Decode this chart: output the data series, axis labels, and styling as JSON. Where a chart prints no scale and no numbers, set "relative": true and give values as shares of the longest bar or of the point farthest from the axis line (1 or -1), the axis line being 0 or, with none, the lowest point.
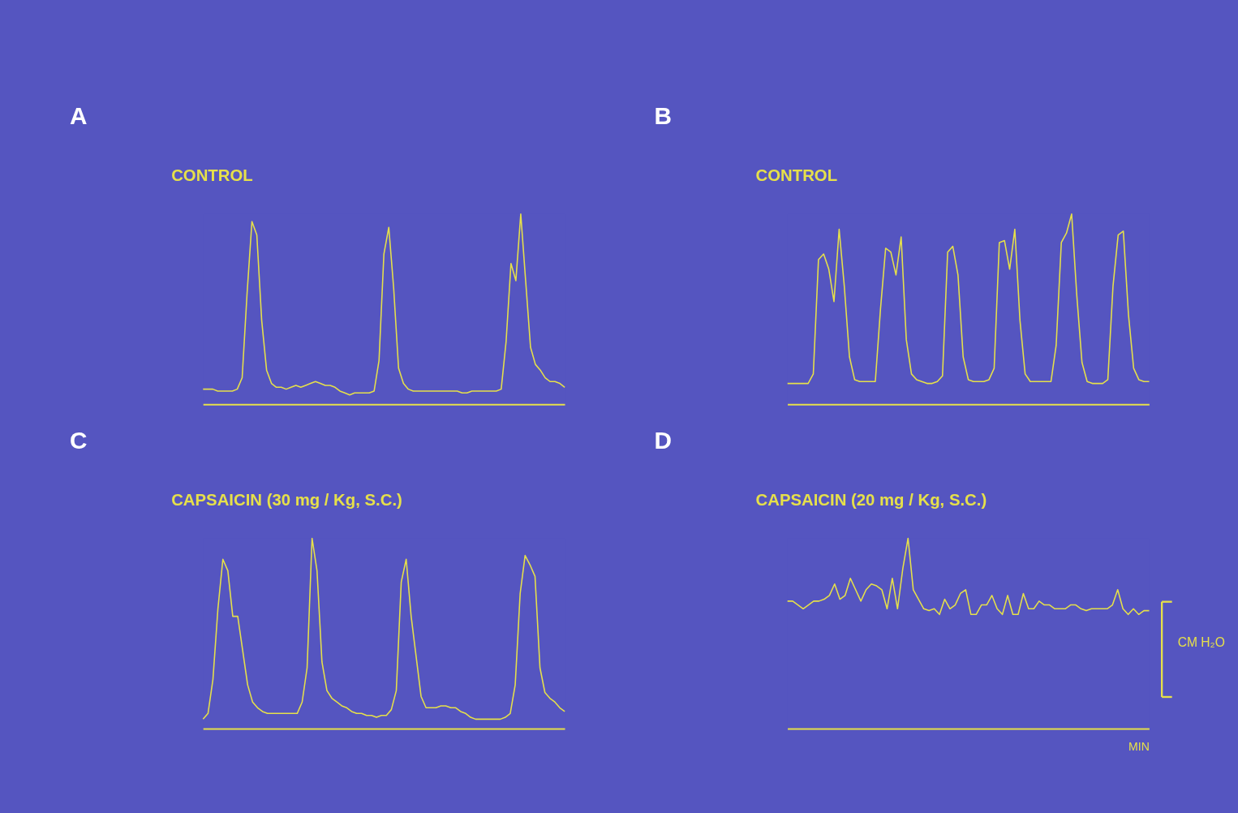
{
  "chart_data": [
    {
      "type": "line",
      "title": "A",
      "subtitle": "CONTROL",
      "relative": true,
      "color": "#e6e04a",
      "tick_labels": false,
      "grid": false,
      "categories": [
        null,
        null,
        null,
        null,
        null,
        null,
        null,
        null,
        null,
        null,
        null,
        null,
        null,
        null,
        null,
        null,
        null,
        null,
        null,
        null,
        null,
        null,
        null,
        null,
        null,
        null,
        null,
        null,
        null,
        null,
        null,
        null,
        null,
        null,
        null,
        null,
        null,
        null,
        null,
        null,
        null,
        null,
        null,
        null,
        null,
        null,
        null,
        null,
        null,
        null,
        null,
        null,
        null,
        null,
        null,
        null,
        null,
        null,
        null,
        null,
        null,
        null,
        null,
        null,
        null,
        null,
        null,
        null,
        null,
        null,
        null,
        null,
        null,
        null,
        null
      ],
      "values": [
        0.08,
        0.08,
        0.08,
        0.07,
        0.07,
        0.07,
        0.07,
        0.08,
        0.14,
        0.58,
        0.96,
        0.89,
        0.44,
        0.18,
        0.11,
        0.09,
        0.09,
        0.08,
        0.09,
        0.1,
        0.09,
        0.1,
        0.11,
        0.12,
        0.11,
        0.1,
        0.1,
        0.09,
        0.07,
        0.06,
        0.05,
        0.06,
        0.06,
        0.06,
        0.06,
        0.07,
        0.23,
        0.79,
        0.93,
        0.61,
        0.19,
        0.11,
        0.08,
        0.07,
        0.07,
        0.07,
        0.07,
        0.07,
        0.07,
        0.07,
        0.07,
        0.07,
        0.07,
        0.06,
        0.06,
        0.07,
        0.07,
        0.07,
        0.07,
        0.07,
        0.07,
        0.08,
        0.33,
        0.74,
        0.65,
        1,
        0.65,
        0.3,
        0.21,
        0.18,
        0.14,
        0.12,
        0.12,
        0.11,
        0.09
      ]
    },
    {
      "type": "line",
      "title": "B",
      "subtitle": "CONTROL",
      "relative": true,
      "color": "#e6e04a",
      "tick_labels": false,
      "grid": false,
      "categories": [
        null,
        null,
        null,
        null,
        null,
        null,
        null,
        null,
        null,
        null,
        null,
        null,
        null,
        null,
        null,
        null,
        null,
        null,
        null,
        null,
        null,
        null,
        null,
        null,
        null,
        null,
        null,
        null,
        null,
        null,
        null,
        null,
        null,
        null,
        null,
        null,
        null,
        null,
        null,
        null,
        null,
        null,
        null,
        null,
        null,
        null,
        null,
        null,
        null,
        null,
        null,
        null,
        null,
        null,
        null,
        null,
        null,
        null,
        null,
        null,
        null,
        null,
        null,
        null,
        null,
        null,
        null,
        null,
        null,
        null,
        null
      ],
      "values": [
        0.11,
        0.11,
        0.11,
        0.11,
        0.11,
        0.16,
        0.76,
        0.79,
        0.71,
        0.54,
        0.92,
        0.62,
        0.25,
        0.13,
        0.12,
        0.12,
        0.12,
        0.12,
        0.5,
        0.82,
        0.8,
        0.68,
        0.88,
        0.34,
        0.16,
        0.13,
        0.12,
        0.11,
        0.11,
        0.12,
        0.15,
        0.8,
        0.83,
        0.68,
        0.25,
        0.13,
        0.12,
        0.12,
        0.12,
        0.13,
        0.19,
        0.85,
        0.86,
        0.71,
        0.92,
        0.44,
        0.16,
        0.12,
        0.12,
        0.12,
        0.12,
        0.12,
        0.31,
        0.85,
        0.9,
        1,
        0.57,
        0.22,
        0.12,
        0.11,
        0.11,
        0.11,
        0.13,
        0.62,
        0.89,
        0.91,
        0.47,
        0.19,
        0.13,
        0.12,
        0.12
      ]
    },
    {
      "type": "line",
      "title": "C",
      "subtitle": "CAPSAICIN   (30 mg / Kg,  S.C.)",
      "relative": true,
      "color": "#e6e04a",
      "tick_labels": false,
      "grid": false,
      "categories": [
        null,
        null,
        null,
        null,
        null,
        null,
        null,
        null,
        null,
        null,
        null,
        null,
        null,
        null,
        null,
        null,
        null,
        null,
        null,
        null,
        null,
        null,
        null,
        null,
        null,
        null,
        null,
        null,
        null,
        null,
        null,
        null,
        null,
        null,
        null,
        null,
        null,
        null,
        null,
        null,
        null,
        null,
        null,
        null,
        null,
        null,
        null,
        null,
        null,
        null,
        null,
        null,
        null,
        null,
        null,
        null,
        null,
        null,
        null,
        null,
        null,
        null,
        null,
        null,
        null,
        null,
        null,
        null,
        null,
        null,
        null,
        null,
        null,
        null
      ],
      "values": [
        0.05,
        0.08,
        0.26,
        0.63,
        0.89,
        0.83,
        0.59,
        0.59,
        0.41,
        0.23,
        0.14,
        0.11,
        0.09,
        0.08,
        0.08,
        0.08,
        0.08,
        0.08,
        0.08,
        0.08,
        0.14,
        0.32,
        1,
        0.83,
        0.35,
        0.2,
        0.16,
        0.14,
        0.12,
        0.11,
        0.09,
        0.08,
        0.08,
        0.07,
        0.07,
        0.06,
        0.07,
        0.07,
        0.1,
        0.2,
        0.77,
        0.89,
        0.59,
        0.38,
        0.17,
        0.11,
        0.11,
        0.11,
        0.12,
        0.12,
        0.11,
        0.11,
        0.09,
        0.08,
        0.06,
        0.05,
        0.05,
        0.05,
        0.05,
        0.05,
        0.05,
        0.06,
        0.08,
        0.23,
        0.71,
        0.91,
        0.86,
        0.8,
        0.32,
        0.19,
        0.16,
        0.14,
        0.11,
        0.09
      ]
    },
    {
      "type": "line",
      "title": "D",
      "subtitle": "CAPSAICIN    (20 mg / Kg, S.C.)",
      "xlabel": "MIN",
      "annotations": [
        "CM H₂O"
      ],
      "relative": true,
      "color": "#e6e04a",
      "tick_labels": false,
      "grid": false,
      "categories": [
        null,
        null,
        null,
        null,
        null,
        null,
        null,
        null,
        null,
        null,
        null,
        null,
        null,
        null,
        null,
        null,
        null,
        null,
        null,
        null,
        null,
        null,
        null,
        null,
        null,
        null,
        null,
        null,
        null,
        null,
        null,
        null,
        null,
        null,
        null,
        null,
        null,
        null,
        null,
        null,
        null,
        null,
        null,
        null,
        null,
        null,
        null,
        null,
        null,
        null,
        null,
        null,
        null,
        null,
        null,
        null,
        null,
        null,
        null,
        null,
        null,
        null,
        null,
        null,
        null,
        null,
        null,
        null,
        null,
        null
      ],
      "values": [
        0.67,
        0.67,
        0.65,
        0.63,
        0.65,
        0.67,
        0.67,
        0.68,
        0.7,
        0.76,
        0.68,
        0.7,
        0.79,
        0.73,
        0.67,
        0.73,
        0.76,
        0.75,
        0.73,
        0.63,
        0.79,
        0.63,
        0.84,
        1,
        0.73,
        0.68,
        0.63,
        0.62,
        0.63,
        0.6,
        0.68,
        0.63,
        0.65,
        0.71,
        0.73,
        0.6,
        0.6,
        0.65,
        0.65,
        0.7,
        0.63,
        0.6,
        0.7,
        0.6,
        0.6,
        0.71,
        0.63,
        0.63,
        0.67,
        0.65,
        0.65,
        0.63,
        0.63,
        0.63,
        0.65,
        0.65,
        0.63,
        0.62,
        0.63,
        0.63,
        0.63,
        0.63,
        0.65,
        0.73,
        0.63,
        0.6,
        0.63,
        0.6,
        0.62,
        0.62
      ]
    }
  ]
}
